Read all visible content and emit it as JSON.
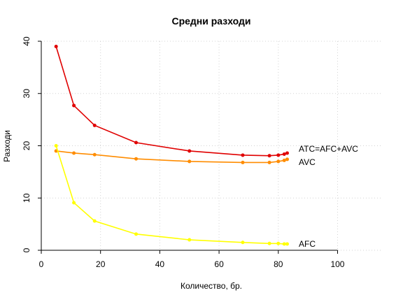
{
  "chart_data": {
    "type": "line",
    "title": "Средни разходи",
    "xlabel": "Количество, бр.",
    "ylabel": "Разходи",
    "xlim": [
      0,
      115
    ],
    "ylim": [
      0,
      40
    ],
    "xticks": [
      0,
      20,
      40,
      60,
      80,
      100
    ],
    "yticks": [
      0,
      10,
      20,
      30,
      40
    ],
    "grid": true,
    "x": [
      5,
      11,
      18,
      32,
      50,
      68,
      77,
      80,
      82,
      83
    ],
    "series": [
      {
        "name": "ATC=AFC+AVC",
        "color": "#e00000",
        "values": [
          39.0,
          27.7,
          23.9,
          20.6,
          19.0,
          18.2,
          18.1,
          18.2,
          18.4,
          18.6
        ]
      },
      {
        "name": "AVC",
        "color": "#ff8c00",
        "values": [
          19.0,
          18.6,
          18.3,
          17.5,
          17.0,
          16.8,
          16.8,
          17.0,
          17.2,
          17.4
        ]
      },
      {
        "name": "AFC",
        "color": "#ffff00",
        "values": [
          20.0,
          9.1,
          5.6,
          3.1,
          2.0,
          1.5,
          1.3,
          1.3,
          1.2,
          1.2
        ]
      }
    ]
  }
}
